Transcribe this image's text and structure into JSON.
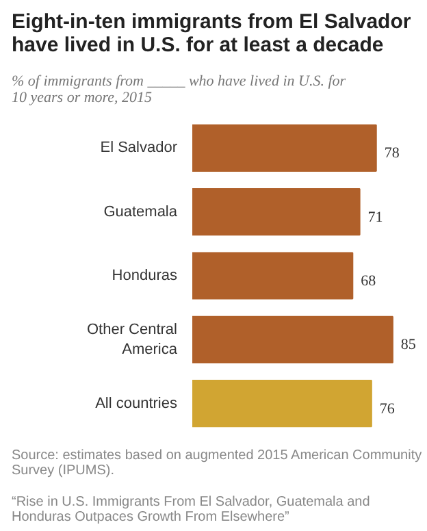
{
  "chart_data": {
    "type": "bar",
    "orientation": "horizontal",
    "title": "Eight-in-ten immigrants from El Salvador have lived in U.S. for at least a decade",
    "subtitle": "% of immigrants from _____ who have lived in U.S. for 10 years or more, 2015",
    "categories": [
      "El Salvador",
      "Guatemala",
      "Honduras",
      "Other Central America",
      "All countries"
    ],
    "values": [
      78,
      71,
      68,
      85,
      76
    ],
    "colors": [
      "#b0602a",
      "#b0602a",
      "#b0602a",
      "#b0602a",
      "#d1a532"
    ],
    "data_labels": true,
    "grid": false,
    "annotations": [
      "Source: estimates based on augmented 2015 American Community Survey (IPUMS).",
      "“Rise in U.S. Immigrants From El Salvador, Guatemala and Honduras Outpaces Growth From Elsewhere”"
    ]
  }
}
